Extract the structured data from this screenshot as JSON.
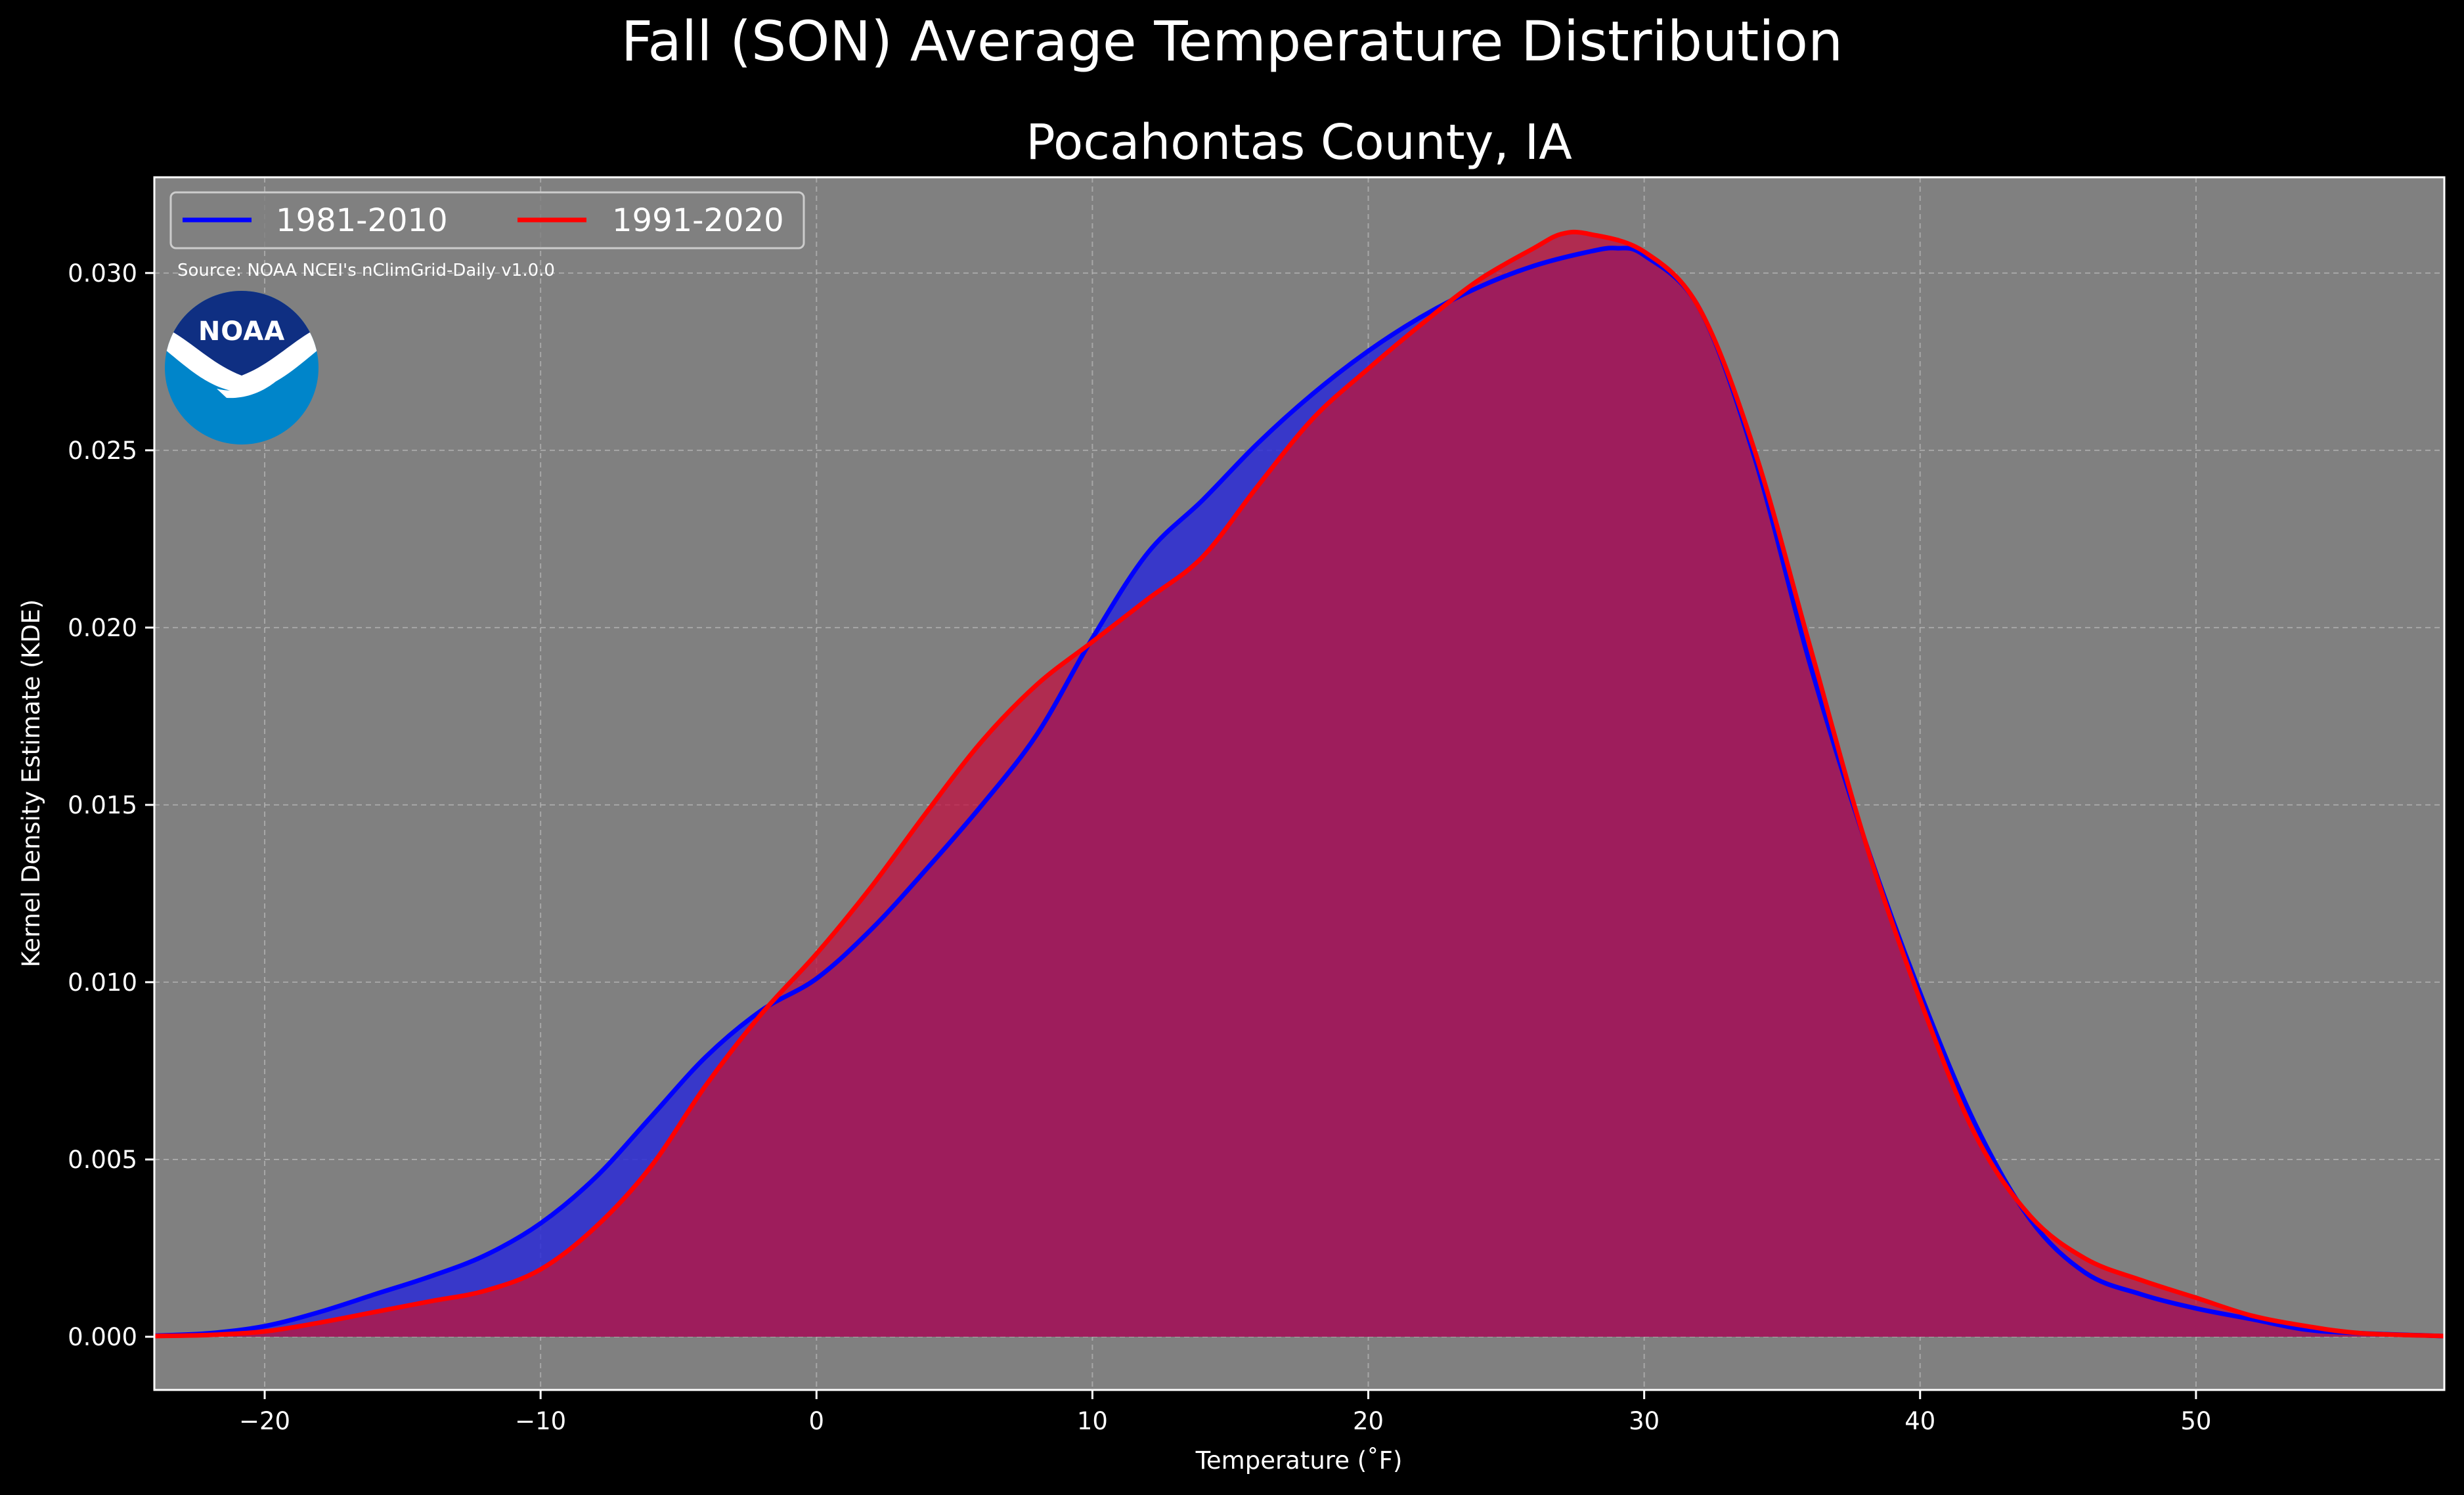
{
  "colors": {
    "background": "#000000",
    "plot_background": "#808080",
    "series_1981": "#0000ff",
    "series_1991": "#ff0000",
    "fill_1981": "#2b2bd6",
    "fill_1991": "#c01040",
    "overlap": "#9e1d5c",
    "noaa_dark": "#0f2f82",
    "noaa_light": "#0085ca"
  },
  "logo": {
    "text": "NOAA",
    "icon": "noaa-logo-icon"
  },
  "chart_data": {
    "type": "area",
    "title": "Fall (SON) Average Temperature Distribution",
    "subtitle": "Pocahontas County, IA",
    "xlabel": "Temperature (˚F)",
    "ylabel": "Kernel Density Estimate (KDE)",
    "xlim": [
      -24,
      59
    ],
    "ylim": [
      -0.0015,
      0.0327
    ],
    "xticks": [
      -20,
      -10,
      0,
      10,
      20,
      30,
      40,
      50
    ],
    "xtick_labels": [
      "−20",
      "−10",
      "0",
      "10",
      "20",
      "30",
      "40",
      "50"
    ],
    "yticks": [
      0.0,
      0.005,
      0.01,
      0.015,
      0.02,
      0.025,
      0.03
    ],
    "ytick_labels": [
      "0.000",
      "0.005",
      "0.010",
      "0.015",
      "0.020",
      "0.025",
      "0.030"
    ],
    "grid": true,
    "legend_position": "top-left",
    "annotation": "Source: NOAA NCEI's nClimGrid-Daily v1.0.0",
    "series": [
      {
        "name": "1981-2010",
        "color": "#0000ff",
        "x": [
          -24,
          -22,
          -20,
          -18,
          -16,
          -14,
          -12,
          -10,
          -8,
          -6,
          -4,
          -2,
          0,
          2,
          4,
          6,
          8,
          10,
          12,
          14,
          16,
          18,
          20,
          22,
          24,
          26,
          28,
          29,
          30,
          32,
          34,
          36,
          38,
          40,
          42,
          44,
          46,
          48,
          50,
          52,
          54,
          56,
          59
        ],
        "y": [
          3e-05,
          0.0001,
          0.0003,
          0.0007,
          0.0012,
          0.0017,
          0.0023,
          0.0032,
          0.0045,
          0.0062,
          0.0079,
          0.0092,
          0.0101,
          0.0115,
          0.0132,
          0.015,
          0.017,
          0.0197,
          0.0221,
          0.0236,
          0.0252,
          0.0266,
          0.0278,
          0.0288,
          0.0296,
          0.0302,
          0.0306,
          0.0307,
          0.0305,
          0.029,
          0.0248,
          0.019,
          0.014,
          0.0097,
          0.006,
          0.0033,
          0.0018,
          0.0012,
          0.0008,
          0.0005,
          0.0002,
          0.0001,
          2e-05
        ]
      },
      {
        "name": "1991-2020",
        "color": "#ff0000",
        "x": [
          -24,
          -22,
          -20,
          -18,
          -16,
          -14,
          -12,
          -10,
          -8,
          -6,
          -4,
          -2,
          0,
          2,
          4,
          6,
          8,
          10,
          12,
          14,
          16,
          18,
          20,
          22,
          24,
          26,
          27,
          28,
          30,
          32,
          34,
          36,
          38,
          40,
          42,
          44,
          46,
          48,
          50,
          52,
          54,
          56,
          59
        ],
        "y": [
          2e-05,
          5e-05,
          0.00015,
          0.0004,
          0.0007,
          0.001,
          0.0013,
          0.0019,
          0.0031,
          0.0048,
          0.0071,
          0.0091,
          0.0108,
          0.0127,
          0.0148,
          0.0168,
          0.0184,
          0.0196,
          0.0208,
          0.022,
          0.024,
          0.0259,
          0.0273,
          0.0286,
          0.0298,
          0.0307,
          0.0311,
          0.0311,
          0.0306,
          0.029,
          0.025,
          0.0195,
          0.014,
          0.0095,
          0.0057,
          0.0034,
          0.0022,
          0.0016,
          0.0011,
          0.0006,
          0.0003,
          0.0001,
          2e-05
        ]
      }
    ]
  }
}
